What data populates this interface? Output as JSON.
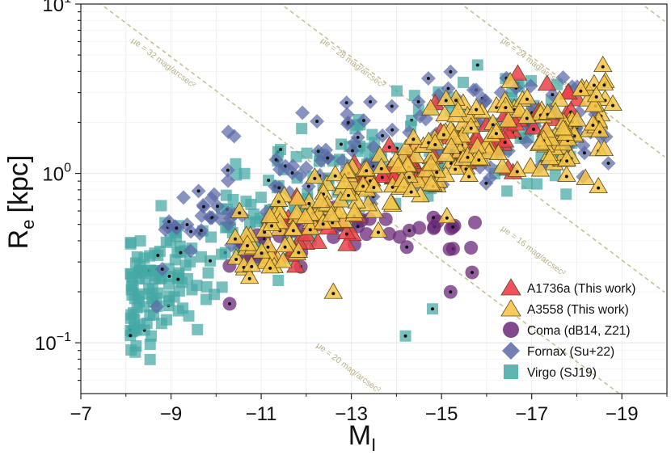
{
  "chart_data": {
    "type": "scatter",
    "title": "",
    "xlabel": "M_I",
    "xlabel_main": "M",
    "xlabel_sub": "I",
    "ylabel": "R_e [kpc]",
    "ylabel_main": "R",
    "ylabel_sub": "e",
    "ylabel_unit": "[kpc]",
    "xlim": [
      -7,
      -20
    ],
    "ylim_log": [
      -1.3,
      1.0
    ],
    "x_ticks": [
      {
        "value": -7,
        "label": "−7"
      },
      {
        "value": -9,
        "label": "−9"
      },
      {
        "value": -11,
        "label": "−11"
      },
      {
        "value": -13,
        "label": "−13"
      },
      {
        "value": -15,
        "label": "−15"
      },
      {
        "value": -17,
        "label": "−17"
      },
      {
        "value": -19,
        "label": "−19"
      }
    ],
    "y_ticks": [
      {
        "log": 1,
        "base": "10",
        "exp": "1"
      },
      {
        "log": 0,
        "base": "10",
        "exp": "0"
      },
      {
        "log": -1,
        "base": "10",
        "exp": "−1"
      }
    ],
    "grid": true,
    "legend_position": "bottom-right",
    "colors": {
      "A1736a": "#ef3e4a",
      "A3558": "#f6c64a",
      "Coma": "#6b2a7a",
      "Fornax": "#5c6aa6",
      "Virgo": "#44a8a4",
      "iso_lines": "#c9c097",
      "core_dot": "#111111"
    },
    "legend": [
      {
        "key": "A1736a",
        "label": "A1736a (This work)",
        "marker": "triangle"
      },
      {
        "key": "A3558",
        "label": "A3558 (This work)",
        "marker": "triangle"
      },
      {
        "key": "Coma",
        "label": "Coma (dB14, Z21)",
        "marker": "circle"
      },
      {
        "key": "Fornax",
        "label": "Fornax (Su+22)",
        "marker": "diamond"
      },
      {
        "key": "Virgo",
        "label": "Virgo (SJ19)",
        "marker": "square"
      }
    ],
    "iso_lines": [
      {
        "mu": 32,
        "label": "μe = 32 mag/arcsec²",
        "label_x": -8.8,
        "label_y": 0.64
      },
      {
        "mu": 28,
        "label": "μe = 28 mag/arcsec²",
        "label_x": -13.0,
        "label_y": 0.64
      },
      {
        "mu": 24,
        "label": "μe = 24 mag/arcsec²",
        "label_x": -17.0,
        "label_y": 0.64
      },
      {
        "mu": 20,
        "label": "μe = 20 mag/arcsec²",
        "label_x": -12.9,
        "label_y": -1.16
      },
      {
        "mu": 16,
        "label": "μe = 16 mag/arcsec²",
        "label_x": -17.0,
        "label_y": -0.47
      }
    ],
    "series": [
      {
        "name": "Virgo",
        "marker": "square",
        "trend": [
          [
            -8.2,
            -0.75
          ],
          [
            -9,
            -0.6
          ],
          [
            -10,
            -0.45
          ],
          [
            -11,
            -0.28
          ],
          [
            -12,
            -0.12
          ],
          [
            -13,
            0.05
          ],
          [
            -14,
            0.12
          ],
          [
            -15,
            0.2
          ],
          [
            -16,
            0.25
          ],
          [
            -17,
            0.3
          ],
          [
            -18,
            0.25
          ]
        ],
        "xrange": [
          -8.1,
          -18.2
        ],
        "count": 300,
        "scatter": 0.17
      },
      {
        "name": "Fornax",
        "marker": "diamond",
        "trend": [
          [
            -8.5,
            -0.45
          ],
          [
            -9,
            -0.38
          ],
          [
            -10,
            -0.25
          ],
          [
            -11,
            -0.1
          ],
          [
            -12,
            0.02
          ],
          [
            -13,
            0.12
          ],
          [
            -14,
            0.18
          ],
          [
            -15,
            0.22
          ],
          [
            -16,
            0.25
          ],
          [
            -17,
            0.28
          ],
          [
            -18,
            0.25
          ]
        ],
        "xrange": [
          -8.5,
          -18.7
        ],
        "count": 160,
        "scatter": 0.17
      },
      {
        "name": "Coma",
        "marker": "circle",
        "trend": [
          [
            -10.2,
            -0.5
          ],
          [
            -11,
            -0.45
          ],
          [
            -12,
            -0.35
          ],
          [
            -13,
            -0.3
          ],
          [
            -14,
            -0.3
          ],
          [
            -15,
            -0.35
          ],
          [
            -16,
            -0.5
          ]
        ],
        "xrange": [
          -10.2,
          -15.8
        ],
        "count": 45,
        "scatter": 0.09
      },
      {
        "name": "A1736a",
        "marker": "triangle",
        "trend": [
          [
            -11,
            -0.45
          ],
          [
            -12,
            -0.35
          ],
          [
            -13,
            -0.2
          ],
          [
            -14,
            -0.05
          ],
          [
            -15,
            0.1
          ],
          [
            -16,
            0.2
          ],
          [
            -17,
            0.3
          ],
          [
            -18,
            0.3
          ]
        ],
        "xrange": [
          -11.2,
          -18.1
        ],
        "count": 80,
        "scatter": 0.12
      },
      {
        "name": "A3558",
        "marker": "triangle",
        "trend": [
          [
            -10.3,
            -0.6
          ],
          [
            -11,
            -0.42
          ],
          [
            -12,
            -0.22
          ],
          [
            -13,
            -0.08
          ],
          [
            -14,
            0.05
          ],
          [
            -15,
            0.15
          ],
          [
            -16,
            0.22
          ],
          [
            -17,
            0.25
          ],
          [
            -18,
            0.25
          ],
          [
            -18.8,
            0.4
          ]
        ],
        "xrange": [
          -10.3,
          -18.8
        ],
        "count": 240,
        "scatter": 0.15
      }
    ],
    "notable_points": [
      {
        "name": "Virgo",
        "x": -14.2,
        "y": -0.96
      },
      {
        "name": "Virgo",
        "x": -14.8,
        "y": -0.8
      },
      {
        "name": "Virgo",
        "x": -15.8,
        "y": 0.64
      },
      {
        "name": "Fornax",
        "x": -15.2,
        "y": 0.6
      },
      {
        "name": "Fornax",
        "x": -18.7,
        "y": 0.06
      },
      {
        "name": "A3558",
        "x": -12.6,
        "y": -0.7
      },
      {
        "name": "A3558",
        "x": -15.1,
        "y": 0.44
      },
      {
        "name": "A3558",
        "x": -18.8,
        "y": 0.41
      },
      {
        "name": "Coma",
        "x": -15.2,
        "y": -0.7
      },
      {
        "name": "Coma",
        "x": -10.3,
        "y": -0.77
      }
    ]
  }
}
